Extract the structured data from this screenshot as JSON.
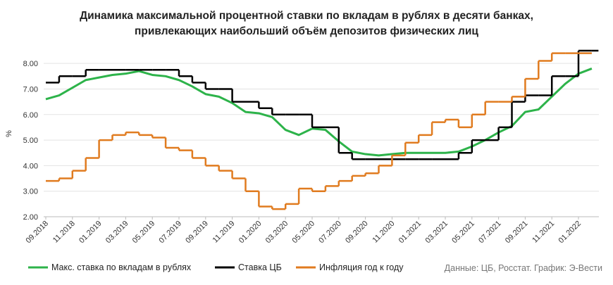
{
  "chart_data": {
    "type": "line",
    "title": [
      "Динамика максимальной процентной ставки по вкладам в рублях в десяти банках,",
      "привлекающих наибольший объём депозитов физических лиц"
    ],
    "y_label": "%",
    "source": "Данные: ЦБ, Росстат. График: Э-Вести",
    "categories": [
      "09.2018",
      null,
      "11.2018",
      null,
      "01.2019",
      null,
      "03.2019",
      null,
      "05.2019",
      null,
      "07.2019",
      null,
      "09.2019",
      null,
      "11.2019",
      null,
      "01.2020",
      null,
      "03.2020",
      null,
      "05.2020",
      null,
      "07.2020",
      null,
      "09.2020",
      null,
      "11.2020",
      null,
      "01.2021",
      null,
      "03.2021",
      null,
      "05.2021",
      null,
      "07.2021",
      null,
      "09.2021",
      null,
      "11.2021",
      null,
      "01.2022",
      null
    ],
    "ylim": [
      2,
      8.5
    ],
    "yticks": [
      {
        "value": 2,
        "label": "2.00"
      },
      {
        "value": 3,
        "label": "3.00"
      },
      {
        "value": 4,
        "label": "4.00"
      },
      {
        "value": 5,
        "label": "5.00"
      },
      {
        "value": 6,
        "label": "6.00"
      },
      {
        "value": 7,
        "label": "7.00"
      },
      {
        "value": 8,
        "label": "8.00"
      }
    ],
    "grid": true,
    "legend": "bottom",
    "series": [
      {
        "name": "Макс. ставка по вкладам в рублях",
        "color": "#2db34a",
        "step": false,
        "values": [
          6.6,
          6.75,
          7.05,
          7.35,
          7.45,
          7.55,
          7.6,
          7.7,
          7.55,
          7.5,
          7.35,
          7.1,
          6.8,
          6.7,
          6.45,
          6.1,
          6.05,
          5.9,
          5.4,
          5.2,
          5.45,
          5.4,
          4.95,
          4.55,
          4.45,
          4.4,
          4.45,
          4.5,
          4.5,
          4.5,
          4.5,
          4.55,
          4.75,
          5.0,
          5.3,
          5.55,
          6.1,
          6.2,
          6.7,
          7.2,
          7.6,
          7.8
        ]
      },
      {
        "name": "Ставка ЦБ",
        "color": "#000000",
        "step": true,
        "values": [
          7.25,
          7.5,
          7.5,
          7.75,
          7.75,
          7.75,
          7.75,
          7.75,
          7.75,
          7.75,
          7.5,
          7.25,
          7.0,
          7.0,
          6.5,
          6.5,
          6.25,
          6.0,
          6.0,
          6.0,
          5.5,
          5.5,
          4.5,
          4.25,
          4.25,
          4.25,
          4.25,
          4.25,
          4.25,
          4.25,
          4.25,
          4.5,
          5.0,
          5.0,
          5.5,
          6.5,
          6.75,
          6.75,
          7.5,
          7.5,
          8.5,
          8.5
        ]
      },
      {
        "name": "Инфляция год к году",
        "color": "#e07b1f",
        "step": true,
        "values": [
          3.4,
          3.5,
          3.8,
          4.3,
          5.0,
          5.2,
          5.3,
          5.2,
          5.1,
          4.7,
          4.6,
          4.3,
          4.0,
          3.8,
          3.5,
          3.0,
          2.4,
          2.3,
          2.5,
          3.1,
          3.0,
          3.2,
          3.4,
          3.6,
          3.7,
          4.0,
          4.4,
          4.9,
          5.2,
          5.7,
          5.8,
          5.5,
          6.0,
          6.5,
          6.5,
          6.7,
          7.4,
          8.1,
          8.4,
          8.4,
          8.4,
          null
        ]
      }
    ]
  }
}
